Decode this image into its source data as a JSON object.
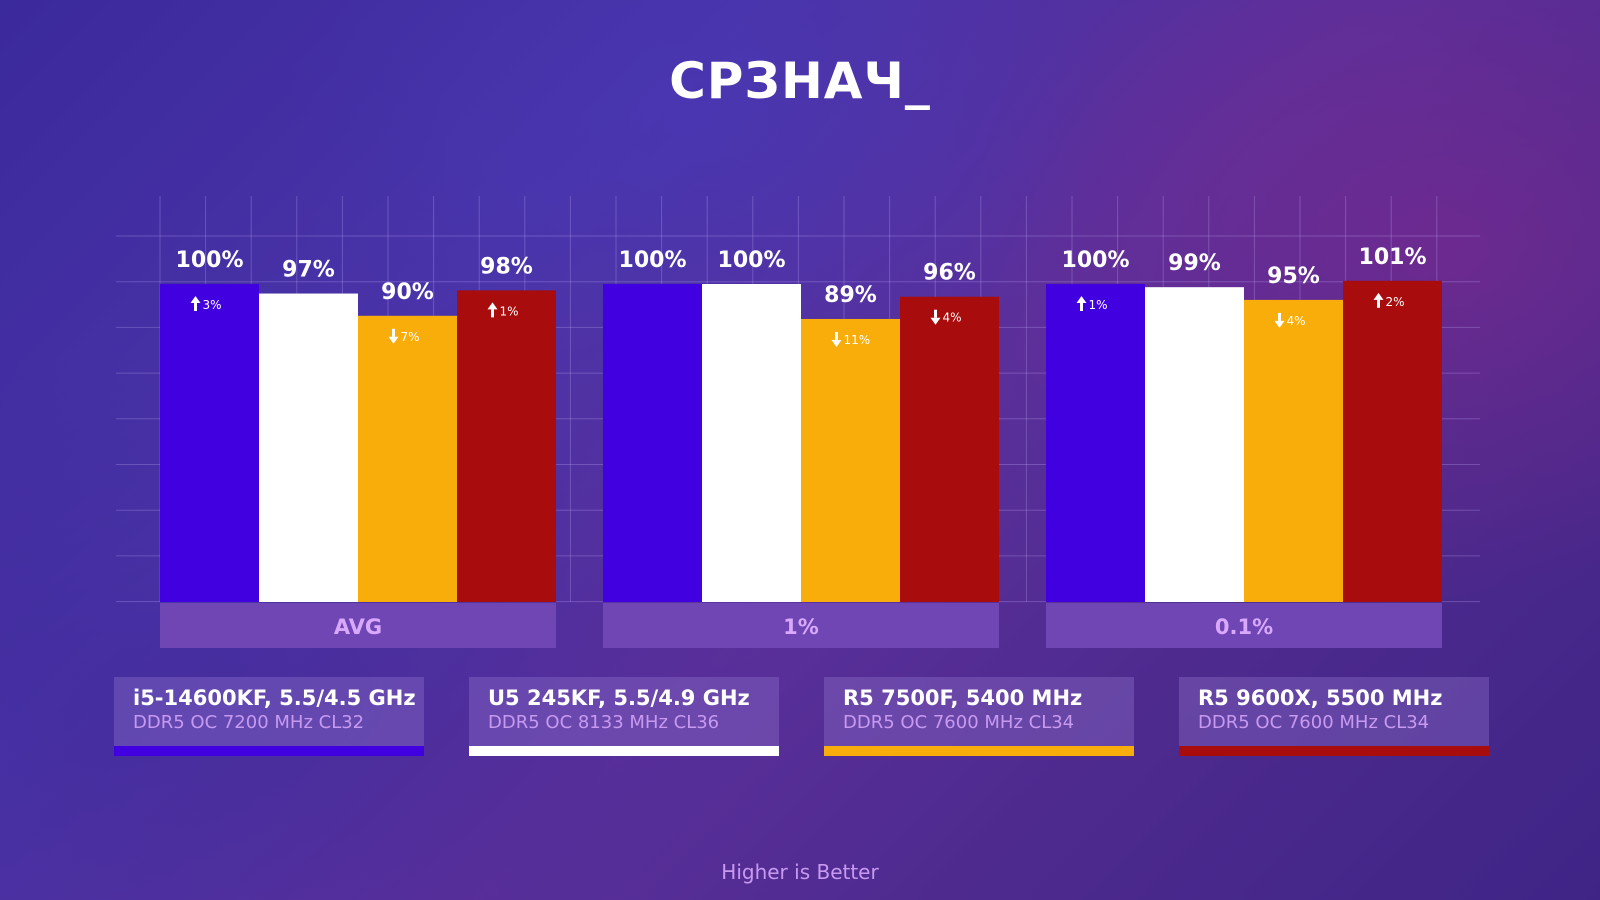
{
  "title": "СРЗНАЧ_",
  "footnote": "Higher is Better",
  "colors": {
    "series": [
      "#4100e0",
      "#ffffff",
      "#f9ad0a",
      "#a80c0c"
    ],
    "arrow_text": "#ffffff",
    "group_label_bg": "#6f46b4",
    "group_label_text": "#d9a8ff"
  },
  "legend": [
    {
      "cpu": "i5-14600KF, 5.5/4.5 GHz",
      "memory": "DDR5 OC 7200 MHz CL32"
    },
    {
      "cpu": "U5 245KF, 5.5/4.9 GHz",
      "memory": "DDR5 OC 8133 MHz CL36"
    },
    {
      "cpu": "R5 7500F, 5400 MHz",
      "memory": "DDR5 OC 7600 MHz CL34"
    },
    {
      "cpu": "R5 9600X, 5500 MHz",
      "memory": "DDR5 OC 7600 MHz CL34"
    }
  ],
  "chart_data": {
    "type": "bar",
    "categories": [
      "AVG",
      "1%",
      "0.1%"
    ],
    "ylim": [
      0,
      100
    ],
    "grid": true,
    "series": [
      {
        "name": "i5-14600KF, 5.5/4.5 GHz",
        "values": [
          100,
          100,
          100
        ],
        "labels": [
          "100%",
          "100%",
          "100%"
        ],
        "deltas": [
          {
            "dir": "up",
            "text": "3%"
          },
          null,
          {
            "dir": "up",
            "text": "1%"
          }
        ]
      },
      {
        "name": "U5 245KF, 5.5/4.9 GHz",
        "values": [
          97,
          100,
          99
        ],
        "labels": [
          "97%",
          "100%",
          "99%"
        ],
        "deltas": [
          null,
          null,
          null
        ]
      },
      {
        "name": "R5 7500F, 5400 MHz",
        "values": [
          90,
          89,
          95
        ],
        "labels": [
          "90%",
          "89%",
          "95%"
        ],
        "deltas": [
          {
            "dir": "down",
            "text": "7%"
          },
          {
            "dir": "down",
            "text": "11%"
          },
          {
            "dir": "down",
            "text": "4%"
          }
        ]
      },
      {
        "name": "R5 9600X, 5500 MHz",
        "values": [
          98,
          96,
          101
        ],
        "labels": [
          "98%",
          "96%",
          "101%"
        ],
        "deltas": [
          {
            "dir": "up",
            "text": "1%"
          },
          {
            "dir": "down",
            "text": "4%"
          },
          {
            "dir": "up",
            "text": "2%"
          }
        ]
      }
    ]
  }
}
